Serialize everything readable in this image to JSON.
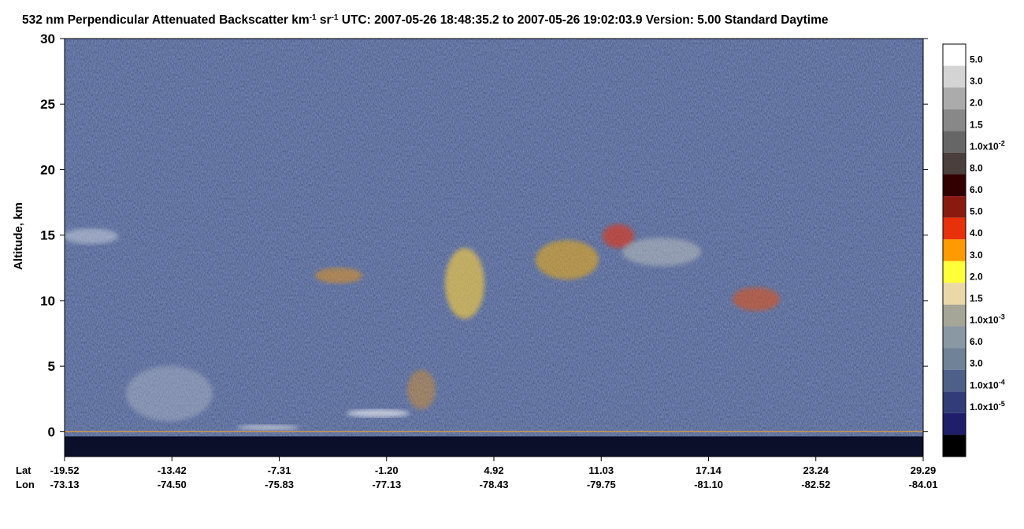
{
  "chart_data": {
    "type": "heatmap",
    "title_segments": [
      {
        "text": "532 nm Perpendicular Attenuated Backscatter km"
      },
      {
        "text": "-1",
        "superscript": true
      },
      {
        "text": " sr"
      },
      {
        "text": "-1",
        "superscript": true
      },
      {
        "text": "  UTC: 2007-05-26 18:48:35.2 to 2007-05-26 19:02:03.9  Version: 5.00 Standard Daytime"
      }
    ],
    "ylabel": "Altitude, km",
    "ylim": [
      -1.9,
      30
    ],
    "yticks": [
      0,
      5,
      10,
      15,
      20,
      25,
      30
    ],
    "x_rows": [
      {
        "name": "Lat",
        "labels": [
          "-19.52",
          "-13.42",
          "-7.31",
          "-1.20",
          "4.92",
          "11.03",
          "17.14",
          "23.24",
          "29.29"
        ]
      },
      {
        "name": "Lon",
        "labels": [
          "-73.13",
          "-74.50",
          "-75.83",
          "-77.13",
          "-78.43",
          "-79.75",
          "-81.10",
          "-82.52",
          "-84.01"
        ]
      }
    ],
    "colorbar": {
      "colors": [
        "#ffffff",
        "#d4d4d4",
        "#ababab",
        "#888888",
        "#666666",
        "#4a3f3c",
        "#330000",
        "#8a1a10",
        "#e8300a",
        "#ff9a00",
        "#ffff3a",
        "#ead8a8",
        "#a6a698",
        "#8a98a4",
        "#6f8298",
        "#4e6088",
        "#323c78",
        "#1e1e6a",
        "#000000"
      ],
      "labels": [
        {
          "text": "5.0"
        },
        {
          "text": "3.0"
        },
        {
          "text": "2.0"
        },
        {
          "text": "1.5"
        },
        {
          "text": "1.0x10",
          "exponent": "-2"
        },
        {
          "text": "8.0"
        },
        {
          "text": "6.0"
        },
        {
          "text": "5.0"
        },
        {
          "text": "4.0"
        },
        {
          "text": "3.0"
        },
        {
          "text": "2.0"
        },
        {
          "text": "1.5"
        },
        {
          "text": "1.0x10",
          "exponent": "-3"
        },
        {
          "text": "6.0"
        },
        {
          "text": "3.0"
        },
        {
          "text": "1.0x10",
          "exponent": "-4"
        },
        {
          "text": "1.0x10",
          "exponent": "-5"
        }
      ]
    }
  }
}
